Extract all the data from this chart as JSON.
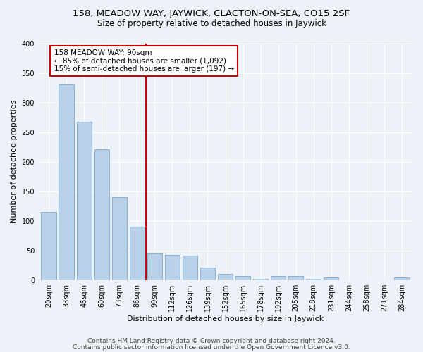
{
  "title": "158, MEADOW WAY, JAYWICK, CLACTON-ON-SEA, CO15 2SF",
  "subtitle": "Size of property relative to detached houses in Jaywick",
  "xlabel": "Distribution of detached houses by size in Jaywick",
  "ylabel": "Number of detached properties",
  "bar_labels": [
    "20sqm",
    "33sqm",
    "46sqm",
    "60sqm",
    "73sqm",
    "86sqm",
    "99sqm",
    "112sqm",
    "126sqm",
    "139sqm",
    "152sqm",
    "165sqm",
    "178sqm",
    "192sqm",
    "205sqm",
    "218sqm",
    "231sqm",
    "244sqm",
    "258sqm",
    "271sqm",
    "284sqm"
  ],
  "bar_values": [
    115,
    330,
    267,
    221,
    140,
    90,
    45,
    43,
    41,
    21,
    10,
    7,
    2,
    7,
    7,
    2,
    4,
    0,
    0,
    0,
    4
  ],
  "bar_color": "#b8d0e8",
  "bar_edgecolor": "#7aaad0",
  "vline_x": 5.5,
  "vline_color": "#cc0000",
  "annotation_text": "158 MEADOW WAY: 90sqm\n← 85% of detached houses are smaller (1,092)\n15% of semi-detached houses are larger (197) →",
  "annotation_box_color": "#ffffff",
  "annotation_box_edgecolor": "#cc0000",
  "ylim": [
    0,
    400
  ],
  "yticks": [
    0,
    50,
    100,
    150,
    200,
    250,
    300,
    350,
    400
  ],
  "footer_line1": "Contains HM Land Registry data © Crown copyright and database right 2024.",
  "footer_line2": "Contains public sector information licensed under the Open Government Licence v3.0.",
  "bg_color": "#eef2f8",
  "plot_bg_color": "#eef2f8",
  "grid_color": "#ffffff",
  "title_fontsize": 9.5,
  "subtitle_fontsize": 8.5,
  "axis_label_fontsize": 8,
  "tick_fontsize": 7,
  "annotation_fontsize": 7.5,
  "footer_fontsize": 6.5
}
